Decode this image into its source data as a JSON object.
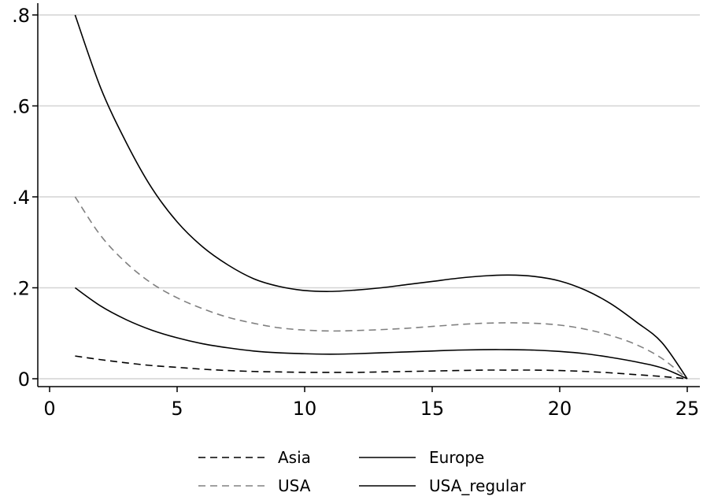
{
  "chart_data": {
    "type": "line",
    "title": "",
    "xlabel": "",
    "ylabel": "",
    "xlim": [
      0,
      25
    ],
    "ylim": [
      0,
      0.8
    ],
    "x_ticks": [
      0,
      5,
      10,
      15,
      20,
      25
    ],
    "x_tick_labels": [
      "0",
      "5",
      "10",
      "15",
      "20",
      "25"
    ],
    "y_ticks": [
      0,
      0.2,
      0.4,
      0.6,
      0.8
    ],
    "y_tick_labels": [
      "0",
      ".2",
      ".4",
      ".6",
      ".8"
    ],
    "grid": "horizontal",
    "legend_position": "bottom",
    "series": [
      {
        "name": "Asia",
        "style": "dashed",
        "color": "#000000",
        "x": [
          1,
          2,
          3,
          4,
          5,
          6,
          7,
          8,
          9,
          10,
          11,
          12,
          13,
          14,
          15,
          16,
          17,
          18,
          19,
          20,
          21,
          22,
          23,
          24,
          25
        ],
        "y": [
          0.05,
          0.042,
          0.035,
          0.029,
          0.025,
          0.021,
          0.018,
          0.016,
          0.015,
          0.014,
          0.014,
          0.014,
          0.015,
          0.016,
          0.017,
          0.018,
          0.019,
          0.019,
          0.019,
          0.018,
          0.016,
          0.013,
          0.009,
          0.005,
          0.0
        ]
      },
      {
        "name": "Europe",
        "style": "solid",
        "color": "#000000",
        "x": [
          1,
          2,
          3,
          4,
          5,
          6,
          7,
          8,
          9,
          10,
          11,
          12,
          13,
          14,
          15,
          16,
          17,
          18,
          19,
          20,
          21,
          22,
          23,
          24,
          25
        ],
        "y": [
          0.8,
          0.64,
          0.52,
          0.42,
          0.345,
          0.29,
          0.25,
          0.22,
          0.203,
          0.194,
          0.192,
          0.195,
          0.2,
          0.207,
          0.214,
          0.221,
          0.226,
          0.228,
          0.225,
          0.215,
          0.195,
          0.165,
          0.125,
          0.08,
          0.0
        ]
      },
      {
        "name": "USA",
        "style": "dashed",
        "color": "#808080",
        "x": [
          1,
          2,
          3,
          4,
          5,
          6,
          7,
          8,
          9,
          10,
          11,
          12,
          13,
          14,
          15,
          16,
          17,
          18,
          19,
          20,
          21,
          22,
          23,
          24,
          25
        ],
        "y": [
          0.4,
          0.315,
          0.255,
          0.21,
          0.178,
          0.154,
          0.135,
          0.122,
          0.112,
          0.107,
          0.105,
          0.106,
          0.108,
          0.111,
          0.115,
          0.119,
          0.122,
          0.123,
          0.122,
          0.118,
          0.109,
          0.095,
          0.075,
          0.045,
          0.0
        ]
      },
      {
        "name": "USA_regular",
        "style": "solid",
        "color": "#000000",
        "x": [
          1,
          2,
          3,
          4,
          5,
          6,
          7,
          8,
          9,
          10,
          11,
          12,
          13,
          14,
          15,
          16,
          17,
          18,
          19,
          20,
          21,
          22,
          23,
          24,
          25
        ],
        "y": [
          0.2,
          0.16,
          0.13,
          0.107,
          0.09,
          0.077,
          0.068,
          0.061,
          0.057,
          0.055,
          0.054,
          0.055,
          0.057,
          0.059,
          0.061,
          0.063,
          0.064,
          0.064,
          0.063,
          0.06,
          0.055,
          0.047,
          0.037,
          0.024,
          0.0
        ]
      }
    ],
    "legend_rows": [
      [
        "Asia",
        "Europe"
      ],
      [
        "USA",
        "USA_regular"
      ]
    ]
  }
}
